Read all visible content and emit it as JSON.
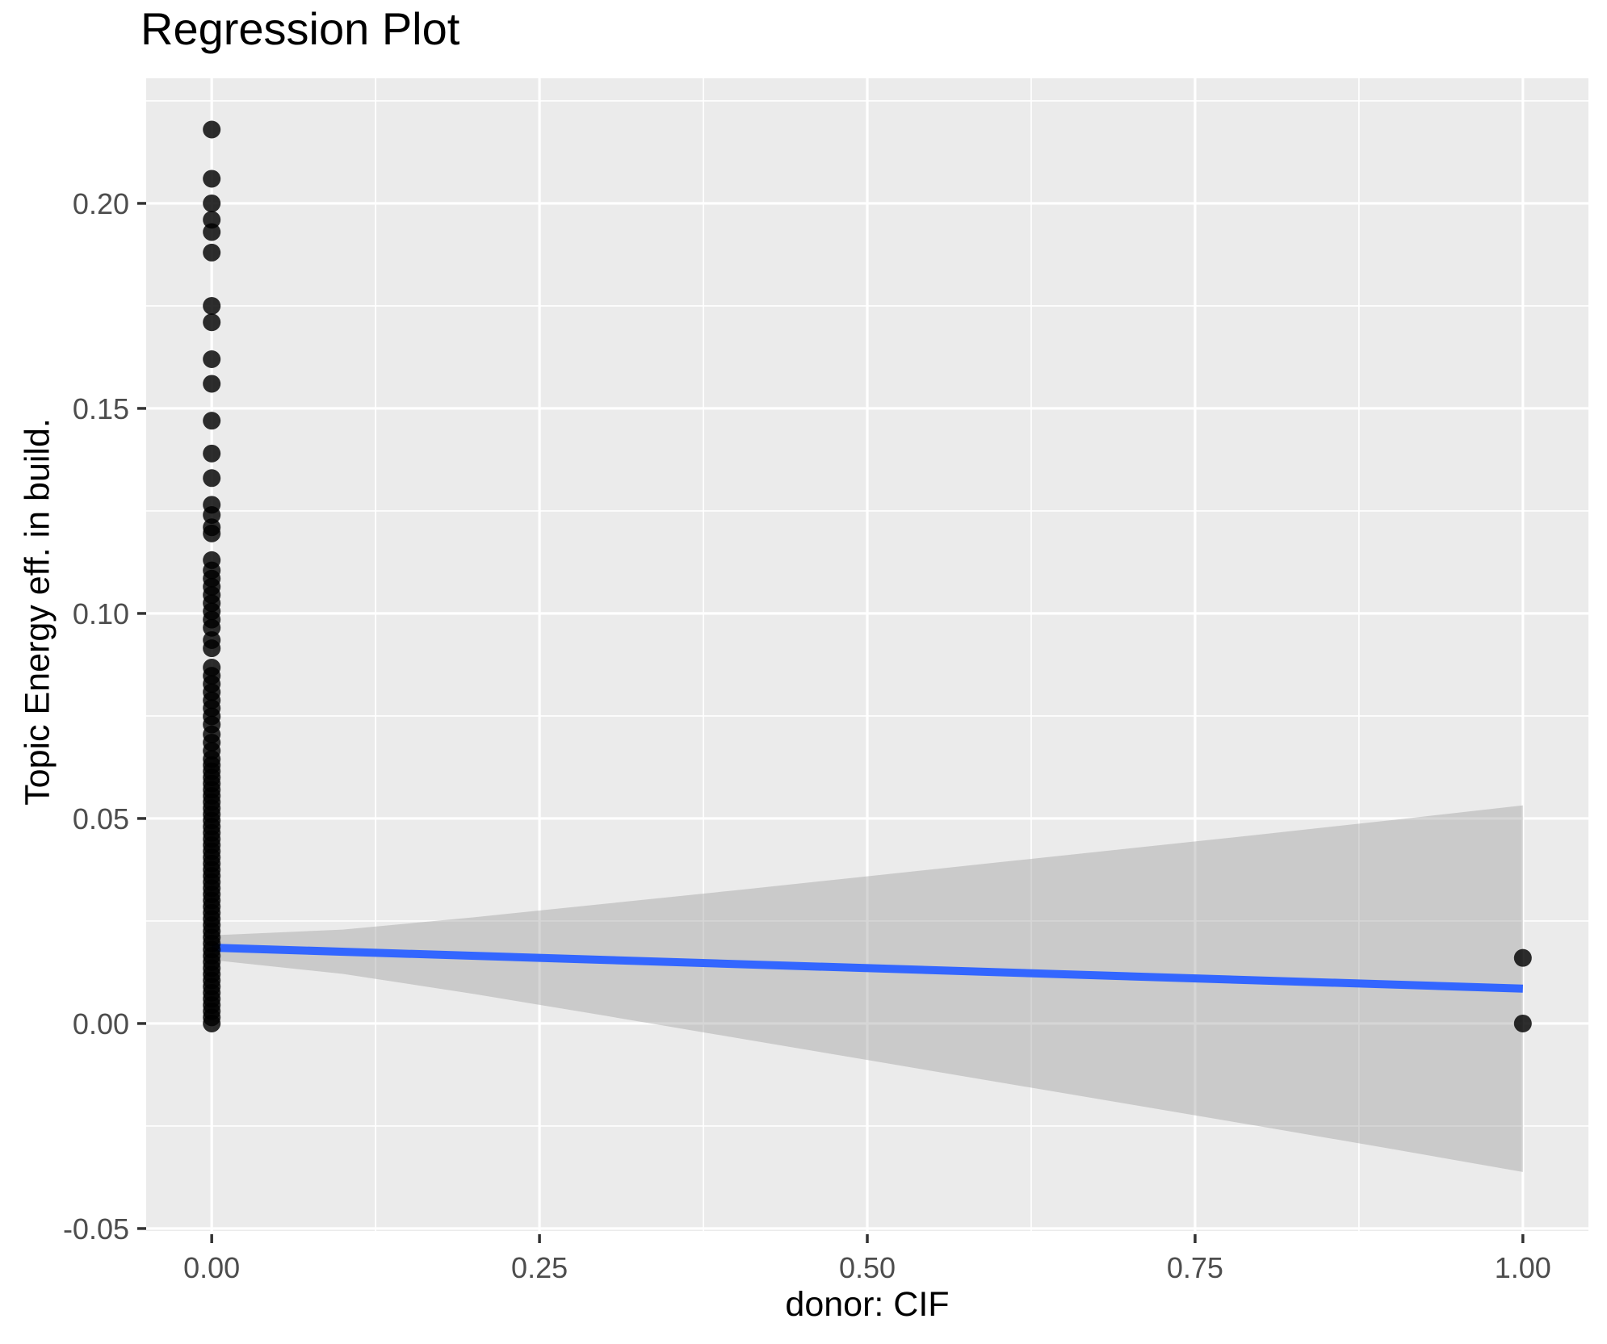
{
  "chart_data": {
    "type": "scatter",
    "title": "Regression Plot",
    "xlabel": "donor: CIF",
    "ylabel": "Topic Energy eff. in build.",
    "legend": "none",
    "xlim": [
      -0.05,
      1.05
    ],
    "ylim": [
      -0.0506,
      0.2305
    ],
    "x_ticks": {
      "values": [
        0,
        0.25,
        0.5,
        0.75,
        1.0
      ],
      "labels": [
        "0.00",
        "0.25",
        "0.50",
        "0.75",
        "1.00"
      ]
    },
    "y_ticks": {
      "values": [
        -0.05,
        0,
        0.05,
        0.1,
        0.15,
        0.2
      ],
      "labels": [
        "-0.05",
        "0.00",
        "0.05",
        "0.10",
        "0.15",
        "0.20"
      ]
    },
    "x_minor_ticks": [
      0.125,
      0.375,
      0.625,
      0.875
    ],
    "y_minor_ticks": [
      -0.025,
      0.025,
      0.075,
      0.125,
      0.175,
      0.225
    ],
    "grid": {
      "show": true,
      "major_color": "#FFFFFF",
      "minor_color": "#FFFFFF"
    },
    "panel_background": "#EBEBEB",
    "tick_mark_color": "#333333",
    "axis_text_color": "#4D4D4D",
    "point_style": {
      "color": "#000000",
      "opacity": 0.82,
      "radius": 11
    },
    "points": [
      [
        0,
        0.218
      ],
      [
        0,
        0.206
      ],
      [
        0,
        0.2
      ],
      [
        0,
        0.196
      ],
      [
        0,
        0.193
      ],
      [
        0,
        0.188
      ],
      [
        0,
        0.175
      ],
      [
        0,
        0.171
      ],
      [
        0,
        0.162
      ],
      [
        0,
        0.156
      ],
      [
        0,
        0.147
      ],
      [
        0,
        0.139
      ],
      [
        0,
        0.133
      ],
      [
        0,
        0.1265
      ],
      [
        0,
        0.124
      ],
      [
        0,
        0.121
      ],
      [
        0,
        0.1195
      ],
      [
        0,
        0.113
      ],
      [
        0,
        0.1105
      ],
      [
        0,
        0.1085
      ],
      [
        0,
        0.1065
      ],
      [
        0,
        0.1045
      ],
      [
        0,
        0.1025
      ],
      [
        0,
        0.1005
      ],
      [
        0,
        0.0985
      ],
      [
        0,
        0.0965
      ],
      [
        0,
        0.0935
      ],
      [
        0,
        0.0915
      ],
      [
        0,
        0.0868
      ],
      [
        0,
        0.0848
      ],
      [
        0,
        0.0828
      ],
      [
        0,
        0.0808
      ],
      [
        0,
        0.0788
      ],
      [
        0,
        0.0769
      ],
      [
        0,
        0.0749
      ],
      [
        0,
        0.0729
      ],
      [
        0,
        0.0705
      ],
      [
        0,
        0.0685
      ],
      [
        0,
        0.0665
      ],
      [
        0,
        0.0645
      ],
      [
        0,
        0.063
      ],
      [
        0,
        0.0615
      ],
      [
        0,
        0.06
      ],
      [
        0,
        0.0585
      ],
      [
        0,
        0.057
      ],
      [
        0,
        0.0555
      ],
      [
        0,
        0.054
      ],
      [
        0,
        0.0525
      ],
      [
        0,
        0.051
      ],
      [
        0,
        0.0495
      ],
      [
        0,
        0.048
      ],
      [
        0,
        0.0465
      ],
      [
        0,
        0.045
      ],
      [
        0,
        0.0435
      ],
      [
        0,
        0.042
      ],
      [
        0,
        0.0405
      ],
      [
        0,
        0.039
      ],
      [
        0,
        0.0375
      ],
      [
        0,
        0.036
      ],
      [
        0,
        0.0345
      ],
      [
        0,
        0.033
      ],
      [
        0,
        0.0315
      ],
      [
        0,
        0.03
      ],
      [
        0,
        0.0285
      ],
      [
        0,
        0.027
      ],
      [
        0,
        0.0255
      ],
      [
        0,
        0.024
      ],
      [
        0,
        0.0225
      ],
      [
        0,
        0.021
      ],
      [
        0,
        0.0195
      ],
      [
        0,
        0.018
      ],
      [
        0,
        0.0165
      ],
      [
        0,
        0.015
      ],
      [
        0,
        0.0135
      ],
      [
        0,
        0.012
      ],
      [
        0,
        0.0105
      ],
      [
        0,
        0.009
      ],
      [
        0,
        0.0075
      ],
      [
        0,
        0.006
      ],
      [
        0,
        0.0045
      ],
      [
        0,
        0.003
      ],
      [
        0,
        0.0015
      ],
      [
        0,
        0.0
      ],
      [
        1,
        0.016
      ],
      [
        1,
        0.0
      ]
    ],
    "regression_line": {
      "color": "#3366FF",
      "width": 10,
      "x": [
        0,
        1
      ],
      "y": [
        0.0185,
        0.0085
      ]
    },
    "confidence_band": {
      "color": "#999999",
      "opacity": 0.4,
      "x": [
        0,
        0.1,
        0.2,
        0.3,
        0.4,
        0.5,
        0.6,
        0.7,
        0.8,
        0.9,
        1.0
      ],
      "upper": [
        0.0215,
        0.0229,
        0.0259,
        0.0292,
        0.0325,
        0.0359,
        0.0393,
        0.0427,
        0.0461,
        0.0496,
        0.0532
      ],
      "lower": [
        0.0155,
        0.0121,
        0.0072,
        0.0019,
        -0.0035,
        -0.0089,
        -0.0143,
        -0.0197,
        -0.0251,
        -0.0306,
        -0.0362
      ]
    }
  }
}
